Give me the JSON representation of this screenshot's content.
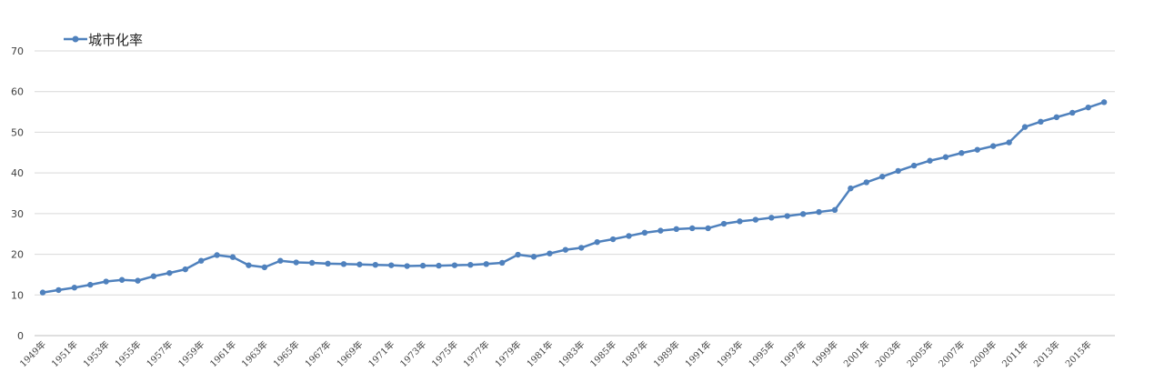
{
  "chart_data": {
    "type": "line",
    "title": "",
    "xlabel": "",
    "ylabel": "",
    "ylim": [
      0,
      70
    ],
    "yticks": [
      0,
      10,
      20,
      30,
      40,
      50,
      60,
      70
    ],
    "grid": true,
    "legend_placement": "top-left",
    "colors": {
      "series": "#4f81bd",
      "grid": "#d9d9d9",
      "axis": "#bfbfbf",
      "text": "#404040"
    },
    "x": [
      "1949年",
      "1950年",
      "1951年",
      "1952年",
      "1953年",
      "1954年",
      "1955年",
      "1956年",
      "1957年",
      "1958年",
      "1959年",
      "1960年",
      "1961年",
      "1962年",
      "1963年",
      "1964年",
      "1965年",
      "1966年",
      "1967年",
      "1968年",
      "1969年",
      "1970年",
      "1971年",
      "1972年",
      "1973年",
      "1974年",
      "1975年",
      "1976年",
      "1977年",
      "1978年",
      "1979年",
      "1980年",
      "1981年",
      "1982年",
      "1983年",
      "1984年",
      "1985年",
      "1986年",
      "1987年",
      "1988年",
      "1989年",
      "1990年",
      "1991年",
      "1992年",
      "1993年",
      "1994年",
      "1995年",
      "1996年",
      "1997年",
      "1998年",
      "1999年",
      "2000年",
      "2001年",
      "2002年",
      "2003年",
      "2004年",
      "2005年",
      "2006年",
      "2007年",
      "2008年",
      "2009年",
      "2010年",
      "2011年",
      "2012年",
      "2013年",
      "2014年",
      "2015年",
      "2016年"
    ],
    "x_tick_labels": [
      "1949年",
      "1951年",
      "1953年",
      "1955年",
      "1957年",
      "1959年",
      "1961年",
      "1963年",
      "1965年",
      "1967年",
      "1969年",
      "1971年",
      "1973年",
      "1975年",
      "1977年",
      "1979年",
      "1981年",
      "1983年",
      "1985年",
      "1987年",
      "1989年",
      "1991年",
      "1993年",
      "1995年",
      "1997年",
      "1999年",
      "2001年",
      "2003年",
      "2005年",
      "2007年",
      "2009年",
      "2011年",
      "2013年",
      "2015年"
    ],
    "series": [
      {
        "name": "城市化率",
        "values": [
          10.6,
          11.2,
          11.8,
          12.5,
          13.3,
          13.7,
          13.5,
          14.6,
          15.4,
          16.3,
          18.4,
          19.8,
          19.3,
          17.3,
          16.8,
          18.4,
          18.0,
          17.9,
          17.7,
          17.6,
          17.5,
          17.4,
          17.3,
          17.1,
          17.2,
          17.2,
          17.3,
          17.4,
          17.6,
          17.9,
          19.9,
          19.4,
          20.2,
          21.1,
          21.6,
          23.0,
          23.7,
          24.5,
          25.3,
          25.8,
          26.2,
          26.4,
          26.4,
          27.5,
          28.1,
          28.5,
          29.0,
          29.4,
          29.9,
          30.4,
          30.9,
          36.2,
          37.7,
          39.1,
          40.5,
          41.8,
          43.0,
          43.9,
          44.9,
          45.7,
          46.6,
          47.5,
          51.3,
          52.6,
          53.7,
          54.8,
          56.1,
          57.4
        ]
      }
    ]
  }
}
